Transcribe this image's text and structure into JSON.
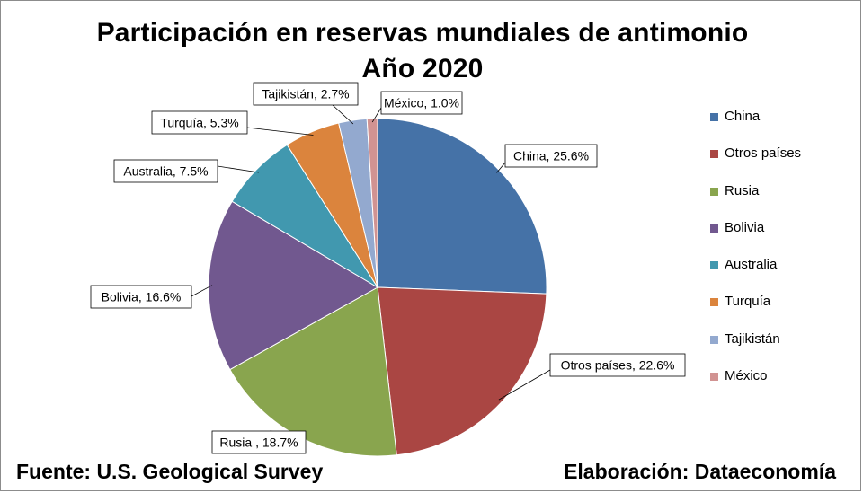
{
  "title": "Participación en reservas mundiales de antimonio",
  "subtitle": "Año 2020",
  "source": "Fuente: U.S. Geological Survey",
  "credit": "Elaboración: Dataeconomía",
  "chart_data": {
    "type": "pie",
    "title": "Participación en reservas mundiales de antimonio Año 2020",
    "slices": [
      {
        "name": "China",
        "value": 25.6,
        "label": "China, 25.6%",
        "color": "#4572A7"
      },
      {
        "name": "Otros países",
        "value": 22.6,
        "label": "Otros países, 22.6%",
        "color": "#AA4643"
      },
      {
        "name": "Rusia",
        "value": 18.7,
        "label": "Rusia , 18.7%",
        "color": "#89A54E"
      },
      {
        "name": "Bolivia",
        "value": 16.6,
        "label": "Bolivia, 16.6%",
        "color": "#71588F"
      },
      {
        "name": "Australia",
        "value": 7.5,
        "label": "Australia, 7.5%",
        "color": "#4198AF"
      },
      {
        "name": "Turquía",
        "value": 5.3,
        "label": "Turquía, 5.3%",
        "color": "#DB843D"
      },
      {
        "name": "Tajikistán",
        "value": 2.7,
        "label": "Tajikistán, 2.7%",
        "color": "#93A9CF"
      },
      {
        "name": "México",
        "value": 1.0,
        "label": "México, 1.0%",
        "color": "#D19392"
      }
    ],
    "legend_position": "right",
    "start_angle": "12 o'clock",
    "direction": "clockwise"
  }
}
